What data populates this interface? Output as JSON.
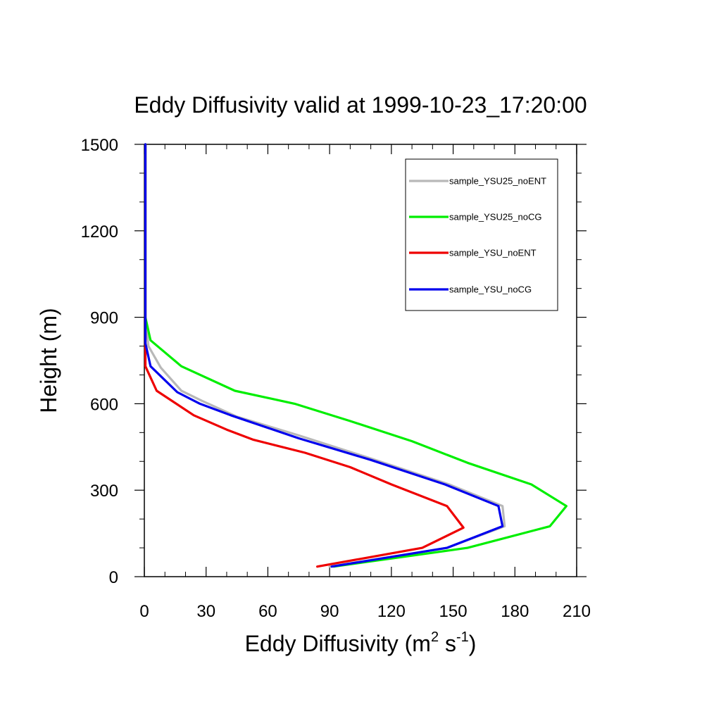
{
  "chart_data": {
    "type": "line",
    "title": "Eddy Diffusivity valid at 1999-10-23_17:20:00",
    "xlabel": {
      "text": "Eddy Diffusivity (m",
      "sup1": "2",
      "mid": " s",
      "sup2": "-1",
      "end": ")"
    },
    "ylabel": "Height (m)",
    "xlim": [
      0,
      210
    ],
    "ylim": [
      0,
      1500
    ],
    "x_ticks": [
      0,
      30,
      60,
      90,
      120,
      150,
      180,
      210
    ],
    "y_ticks": [
      0,
      300,
      600,
      900,
      1200,
      1500
    ],
    "grid": false,
    "legend_position": "top-right",
    "series": [
      {
        "name": "sample_YSU25_noENT",
        "color": "#b8b8b8",
        "points": [
          [
            90,
            35
          ],
          [
            147,
            100
          ],
          [
            175,
            175
          ],
          [
            174,
            245
          ],
          [
            148,
            320
          ],
          [
            110,
            410
          ],
          [
            75,
            490
          ],
          [
            45,
            555
          ],
          [
            28,
            610
          ],
          [
            18,
            645
          ],
          [
            8,
            725
          ],
          [
            2,
            800
          ],
          [
            0.5,
            900
          ],
          [
            0.5,
            1200
          ],
          [
            0.5,
            1500
          ]
        ]
      },
      {
        "name": "sample_YSU25_noCG",
        "color": "#00ee00",
        "points": [
          [
            92,
            35
          ],
          [
            157,
            100
          ],
          [
            197,
            175
          ],
          [
            205,
            245
          ],
          [
            188,
            320
          ],
          [
            157,
            395
          ],
          [
            130,
            470
          ],
          [
            100,
            540
          ],
          [
            73,
            600
          ],
          [
            44,
            645
          ],
          [
            18,
            730
          ],
          [
            3,
            820
          ],
          [
            0.5,
            900
          ],
          [
            0.5,
            1200
          ],
          [
            0.5,
            1500
          ]
        ]
      },
      {
        "name": "sample_YSU_noENT",
        "color": "#ee0000",
        "points": [
          [
            84,
            35
          ],
          [
            135,
            100
          ],
          [
            155,
            170
          ],
          [
            147,
            245
          ],
          [
            120,
            320
          ],
          [
            100,
            380
          ],
          [
            78,
            430
          ],
          [
            53,
            475
          ],
          [
            40,
            510
          ],
          [
            24,
            560
          ],
          [
            6,
            645
          ],
          [
            0.5,
            730
          ],
          [
            0.5,
            800
          ],
          [
            0.5,
            900
          ],
          [
            0.5,
            1200
          ],
          [
            0.5,
            1500
          ]
        ]
      },
      {
        "name": "sample_YSU_noCG",
        "color": "#0000ee",
        "points": [
          [
            91,
            35
          ],
          [
            147,
            100
          ],
          [
            174,
            175
          ],
          [
            172,
            245
          ],
          [
            146,
            320
          ],
          [
            110,
            405
          ],
          [
            75,
            480
          ],
          [
            42,
            560
          ],
          [
            27,
            600
          ],
          [
            16,
            640
          ],
          [
            3,
            730
          ],
          [
            0.5,
            810
          ],
          [
            0.5,
            900
          ],
          [
            0.5,
            1200
          ],
          [
            0.5,
            1500
          ]
        ]
      }
    ]
  }
}
